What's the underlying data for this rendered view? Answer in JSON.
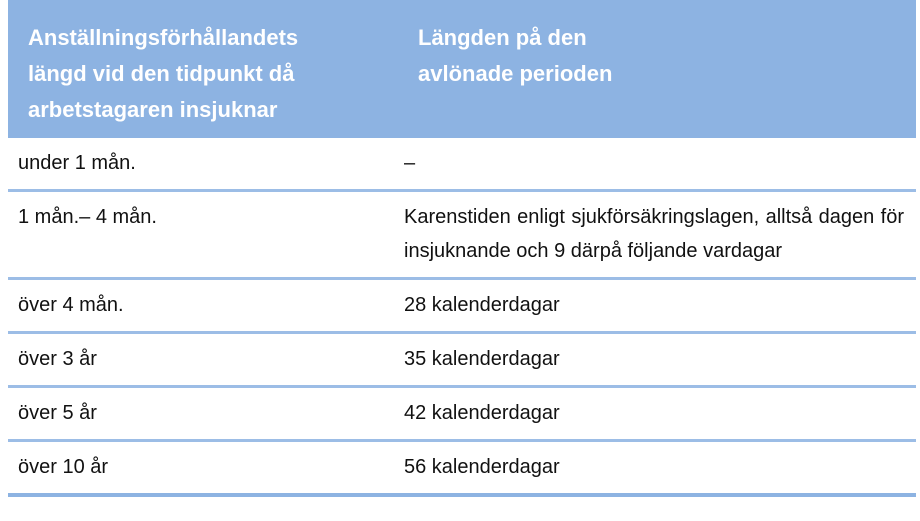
{
  "table": {
    "header": [
      "Anställningsförhållandets längd vid den tidpunkt då arbetstagaren insjuknar",
      "Längden på den avlönade perioden"
    ],
    "rows": [
      [
        "under 1 mån.",
        "–"
      ],
      [
        "1 mån.– 4 mån.",
        "Karenstiden enligt sjukförsäkringslagen, alltså dagen för insjuknande och 9 därpå följande vardagar"
      ],
      [
        "över 4 mån.",
        "28 kalenderdagar"
      ],
      [
        "över 3 år",
        "35 kalenderdagar"
      ],
      [
        "över 5 år",
        "42 kalenderdagar"
      ],
      [
        "över 10 år",
        "56 kalenderdagar"
      ]
    ]
  }
}
